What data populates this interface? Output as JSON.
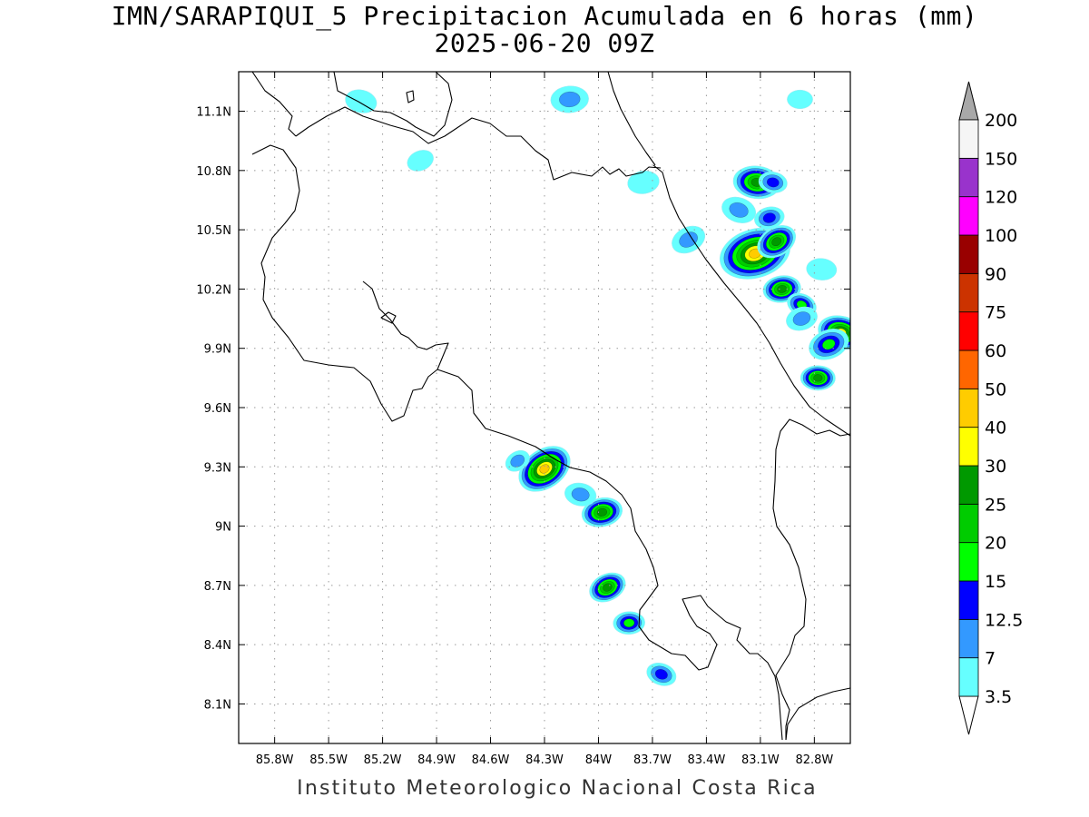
{
  "title": {
    "line1": "IMN/SARAPIQUI_5 Precipitacion Acumulada en 6 horas (mm)",
    "line2": "2025-06-20 09Z"
  },
  "credit": "Instituto Meteorologico Nacional Costa Rica",
  "map": {
    "lon_range": [
      -86.0,
      -82.6
    ],
    "lat_range": [
      7.9,
      11.3
    ],
    "lon_ticks": [
      {
        "value": -85.8,
        "label": "85.8W"
      },
      {
        "value": -85.5,
        "label": "85.5W"
      },
      {
        "value": -85.2,
        "label": "85.2W"
      },
      {
        "value": -84.9,
        "label": "84.9W"
      },
      {
        "value": -84.6,
        "label": "84.6W"
      },
      {
        "value": -84.3,
        "label": "84.3W"
      },
      {
        "value": -84.0,
        "label": "84W"
      },
      {
        "value": -83.7,
        "label": "83.7W"
      },
      {
        "value": -83.4,
        "label": "83.4W"
      },
      {
        "value": -83.1,
        "label": "83.1W"
      },
      {
        "value": -82.8,
        "label": "82.8W"
      }
    ],
    "lat_ticks": [
      {
        "value": 11.1,
        "label": "11.1N"
      },
      {
        "value": 10.8,
        "label": "10.8N"
      },
      {
        "value": 10.5,
        "label": "10.5N"
      },
      {
        "value": 10.2,
        "label": "10.2N"
      },
      {
        "value": 9.9,
        "label": "9.9N"
      },
      {
        "value": 9.6,
        "label": "9.6N"
      },
      {
        "value": 9.3,
        "label": "9.3N"
      },
      {
        "value": 9.0,
        "label": "9N"
      },
      {
        "value": 8.7,
        "label": "8.7N"
      },
      {
        "value": 8.4,
        "label": "8.4N"
      },
      {
        "value": 8.1,
        "label": "8.1N"
      }
    ],
    "grid": true
  },
  "colorbar": {
    "levels": [
      {
        "label": "3.5",
        "color": "#66ffff"
      },
      {
        "label": "7",
        "color": "#3399ff"
      },
      {
        "label": "12.5",
        "color": "#0000ff"
      },
      {
        "label": "15",
        "color": "#00ff00"
      },
      {
        "label": "20",
        "color": "#00cc00"
      },
      {
        "label": "25",
        "color": "#009900"
      },
      {
        "label": "30",
        "color": "#ffff00"
      },
      {
        "label": "40",
        "color": "#ffcc00"
      },
      {
        "label": "50",
        "color": "#ff6600"
      },
      {
        "label": "60",
        "color": "#ff0000"
      },
      {
        "label": "75",
        "color": "#cc3300"
      },
      {
        "label": "90",
        "color": "#990000"
      },
      {
        "label": "100",
        "color": "#ff00ff"
      },
      {
        "label": "120",
        "color": "#9933cc"
      },
      {
        "label": "150",
        "color": "#f5f5f5"
      },
      {
        "label": "200",
        "color": "#a8a8a8"
      }
    ]
  },
  "precip_cells": [
    {
      "lon": -84.3,
      "lat": 9.29,
      "peak_mm": 40,
      "size": 1.3
    },
    {
      "lon": -83.98,
      "lat": 9.07,
      "peak_mm": 25,
      "size": 0.8
    },
    {
      "lon": -84.1,
      "lat": 9.16,
      "peak_mm": 7,
      "size": 0.5
    },
    {
      "lon": -83.95,
      "lat": 8.69,
      "peak_mm": 25,
      "size": 0.7
    },
    {
      "lon": -83.83,
      "lat": 8.51,
      "peak_mm": 15,
      "size": 0.5
    },
    {
      "lon": -83.65,
      "lat": 8.25,
      "peak_mm": 12.5,
      "size": 0.45
    },
    {
      "lon": -83.13,
      "lat": 10.38,
      "peak_mm": 40,
      "size": 1.8
    },
    {
      "lon": -83.12,
      "lat": 10.74,
      "peak_mm": 25,
      "size": 1.0
    },
    {
      "lon": -83.01,
      "lat": 10.44,
      "peak_mm": 25,
      "size": 0.8
    },
    {
      "lon": -82.98,
      "lat": 10.2,
      "peak_mm": 25,
      "size": 0.7
    },
    {
      "lon": -82.65,
      "lat": 9.98,
      "peak_mm": 30,
      "size": 1.0
    },
    {
      "lon": -82.72,
      "lat": 9.92,
      "peak_mm": 15,
      "size": 0.8
    },
    {
      "lon": -82.78,
      "lat": 9.75,
      "peak_mm": 25,
      "size": 0.6
    },
    {
      "lon": -82.87,
      "lat": 10.12,
      "peak_mm": 15,
      "size": 0.45
    },
    {
      "lon": -83.05,
      "lat": 10.56,
      "peak_mm": 12.5,
      "size": 0.45
    },
    {
      "lon": -83.03,
      "lat": 10.74,
      "peak_mm": 12.5,
      "size": 0.4
    },
    {
      "lon": -83.5,
      "lat": 10.45,
      "peak_mm": 7,
      "size": 0.6
    },
    {
      "lon": -84.16,
      "lat": 11.16,
      "peak_mm": 7,
      "size": 0.7
    },
    {
      "lon": -83.22,
      "lat": 10.6,
      "peak_mm": 7,
      "size": 0.6
    },
    {
      "lon": -82.87,
      "lat": 10.05,
      "peak_mm": 7,
      "size": 0.5
    },
    {
      "lon": -82.76,
      "lat": 10.3,
      "peak_mm": 3.5,
      "size": 0.45
    },
    {
      "lon": -84.45,
      "lat": 9.33,
      "peak_mm": 7,
      "size": 0.3
    },
    {
      "lon": -83.75,
      "lat": 10.74,
      "peak_mm": 3.5,
      "size": 0.5
    },
    {
      "lon": -85.32,
      "lat": 11.15,
      "peak_mm": 3.5,
      "size": 0.5
    },
    {
      "lon": -84.99,
      "lat": 10.85,
      "peak_mm": 3.5,
      "size": 0.35
    },
    {
      "lon": -82.88,
      "lat": 11.16,
      "peak_mm": 3.5,
      "size": 0.3
    }
  ]
}
